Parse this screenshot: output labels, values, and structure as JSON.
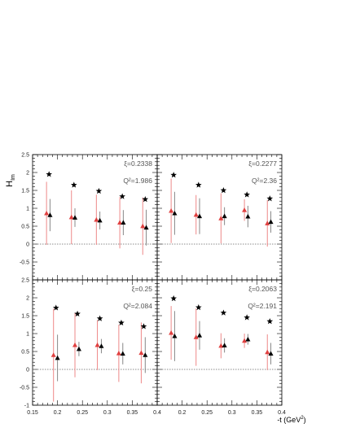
{
  "chart_data": {
    "type": "scatter",
    "ylabel_main": "H",
    "ylabel_sub": "Im",
    "xlabel_main": "-t (GeV",
    "xlabel_sup": "2",
    "xlabel_end": ")",
    "xlim": [
      0.15,
      0.4
    ],
    "ylim": [
      -1,
      2.5
    ],
    "xticks": [
      "0.15",
      "0.2",
      "0.25",
      "0.3",
      "0.35",
      "0.4"
    ],
    "yticks": [
      "-1",
      "-0.5",
      "0",
      "0.5",
      "1",
      "1.5",
      "2",
      "2.5"
    ],
    "reference_line": 0,
    "colors": {
      "red": "#e04040",
      "black": "#000000",
      "errorbar_red": "#ee8888",
      "errorbar_black": "#888888"
    },
    "panels": [
      {
        "xi_label": "ξ=0.2338",
        "q2_label": "Q²=1.986",
        "stars": {
          "x": [
            0.183,
            0.233,
            0.283,
            0.33,
            0.376
          ],
          "y": [
            1.95,
            1.65,
            1.48,
            1.33,
            1.25
          ]
        },
        "red": {
          "x": [
            0.178,
            0.228,
            0.278,
            0.325,
            0.371
          ],
          "y": [
            0.86,
            0.75,
            0.68,
            0.6,
            0.5
          ],
          "err": [
            0.88,
            0.75,
            0.7,
            0.72,
            0.8
          ]
        },
        "black": {
          "x": [
            0.185,
            0.235,
            0.285,
            0.332,
            0.378
          ],
          "y": [
            0.81,
            0.74,
            0.66,
            0.6,
            0.46
          ],
          "err": [
            0.45,
            0.26,
            0.25,
            0.35,
            0.5
          ]
        }
      },
      {
        "xi_label": "ξ=0.2277",
        "q2_label": "Q²=2.36",
        "stars": {
          "x": [
            0.183,
            0.233,
            0.283,
            0.33,
            0.376
          ],
          "y": [
            1.93,
            1.65,
            1.5,
            1.38,
            1.27
          ]
        },
        "red": {
          "x": [
            0.178,
            0.228,
            0.278,
            0.325,
            0.371
          ],
          "y": [
            0.93,
            0.82,
            0.72,
            0.95,
            0.58
          ],
          "err": [
            0.9,
            0.55,
            0.7,
            0.3,
            0.65
          ]
        },
        "black": {
          "x": [
            0.185,
            0.235,
            0.285,
            0.332,
            0.378
          ],
          "y": [
            0.86,
            0.78,
            0.78,
            0.77,
            0.62
          ],
          "err": [
            0.6,
            0.5,
            0.25,
            0.3,
            0.3
          ]
        }
      },
      {
        "xi_label": "ξ=0.25",
        "q2_label": "Q²=2.084",
        "stars": {
          "x": [
            0.197,
            0.24,
            0.285,
            0.328,
            0.373
          ],
          "y": [
            1.72,
            1.55,
            1.42,
            1.3,
            1.2
          ]
        },
        "red": {
          "x": [
            0.192,
            0.235,
            0.28,
            0.323,
            0.368
          ],
          "y": [
            0.4,
            0.68,
            0.68,
            0.45,
            0.46
          ],
          "err": [
            1.3,
            0.9,
            0.7,
            0.8,
            0.85
          ]
        },
        "black": {
          "x": [
            0.2,
            0.243,
            0.288,
            0.331,
            0.376
          ],
          "y": [
            0.32,
            0.57,
            0.65,
            0.44,
            0.4
          ],
          "err": [
            0.65,
            0.2,
            0.2,
            0.3,
            0.5
          ]
        }
      },
      {
        "xi_label": "ξ=0.2063",
        "q2_label": "Q²=2.191",
        "stars": {
          "x": [
            0.183,
            0.233,
            0.283,
            0.33,
            0.376
          ],
          "y": [
            1.98,
            1.73,
            1.58,
            1.45,
            1.34
          ]
        },
        "red": {
          "x": [
            0.178,
            0.228,
            0.278,
            0.325,
            0.371
          ],
          "y": [
            1.02,
            0.9,
            0.66,
            0.8,
            0.48
          ],
          "err": [
            0.75,
            0.8,
            0.35,
            0.2,
            0.5
          ]
        },
        "black": {
          "x": [
            0.185,
            0.235,
            0.285,
            0.332,
            0.378
          ],
          "y": [
            0.93,
            0.95,
            0.67,
            0.84,
            0.44
          ],
          "err": [
            0.7,
            0.4,
            0.2,
            0.15,
            0.3
          ]
        }
      }
    ]
  }
}
